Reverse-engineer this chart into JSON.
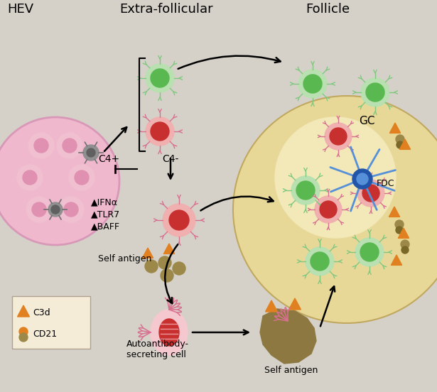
{
  "bg_color": "#d5d1c8",
  "title_hev": "HEV",
  "title_extra": "Extra-follicular",
  "title_follicle": "Follicle",
  "label_c4plus": "C4+",
  "label_c4minus": "C4-",
  "label_gc": "GC",
  "label_fdc": "FDC",
  "label_ifna": "▲IFNα",
  "label_tlr7": "▲TLR7",
  "label_baff": "▲BAFF",
  "label_self_antigen": "Self antigen",
  "label_autoantibody": "Autoantibody-\nsecreting cell",
  "label_self_antigen2": "Self antigen",
  "label_c3d": "C3d",
  "label_cd21": "CD21",
  "color_green_outer": "#b8e0b0",
  "color_green_inner": "#5ab850",
  "color_red_outer": "#f0b0b0",
  "color_red_inner": "#c83030",
  "color_pink_outer": "#f5c8d0",
  "color_pink_inner": "#e06080",
  "color_follicle_bg": "#e8d898",
  "color_hev_bg": "#f0b8cc",
  "color_hev_edge": "#d898b8",
  "color_receptor_green": "#80c880",
  "color_receptor_red": "#d87090",
  "color_orange": "#e08020",
  "color_brown_antigen": "#9c8848",
  "color_brown_dark": "#7a6838",
  "color_blue_fdc": "#5590d8",
  "color_blue_fdc_dark": "#2255aa",
  "color_arrow": "#111111",
  "color_legend_bg": "#f5ecd8",
  "color_hev_cell": "#f0c0d0",
  "color_hev_cell_inner": "#e090b0",
  "color_gray_cell": "#909090",
  "color_gray_inner": "#606060"
}
